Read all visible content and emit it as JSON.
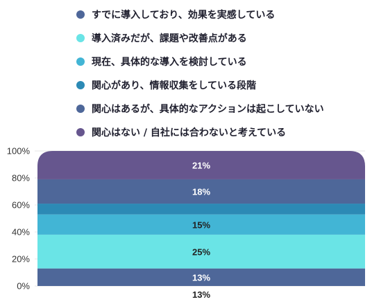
{
  "chart_data": {
    "type": "bar",
    "stacked": true,
    "percent": true,
    "categories": [
      ""
    ],
    "ylim": [
      0,
      100
    ],
    "yticks": [
      "0%",
      "20%",
      "40%",
      "60%",
      "80%",
      "100%"
    ],
    "legend_position": "top",
    "grid": true,
    "series": [
      {
        "name": "すでに導入しており、効果を実感している",
        "values": [
          13
        ],
        "label": "13%",
        "color": "#4e6799",
        "label_color": "#ffffff"
      },
      {
        "name": "導入済みだが、課題や改善点がある",
        "values": [
          25
        ],
        "label": "25%",
        "color": "#6ae4e6",
        "label_color": "#222222"
      },
      {
        "name": "現在、具体的な導入を検討している",
        "values": [
          15
        ],
        "label": "15%",
        "color": "#42b5d5",
        "label_color": "#222222"
      },
      {
        "name": "関心があり、情報収集をしている段階",
        "values": [
          8
        ],
        "label": "",
        "color": "#2c8ab5",
        "label_color": "#ffffff"
      },
      {
        "name": "関心はあるが、具体的なアクションは起こしていない",
        "values": [
          18
        ],
        "label": "18%",
        "color": "#4e6799",
        "label_color": "#ffffff"
      },
      {
        "name": "関心はない / 自社には合わないと考えている",
        "values": [
          21
        ],
        "label": "21%",
        "color": "#66568e",
        "label_color": "#ffffff"
      }
    ],
    "bottom_label": "13%"
  }
}
